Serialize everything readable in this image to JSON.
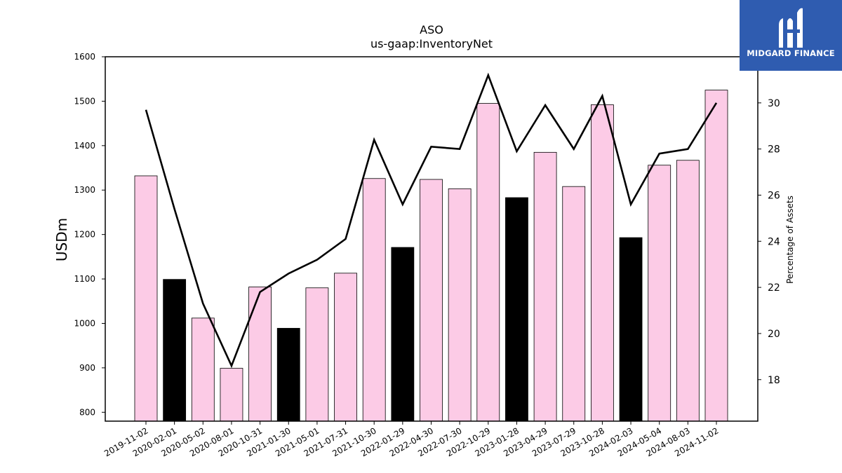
{
  "chart_data": {
    "type": "bar",
    "title": "ASO",
    "subtitle": "us-gaap:InventoryNet",
    "ylabel": "USDm",
    "y2label": "Percentage of Assets",
    "ylim": [
      780,
      1600
    ],
    "y2lim": [
      16.2,
      32.0
    ],
    "yticks": [
      800,
      900,
      1000,
      1100,
      1200,
      1300,
      1400,
      1500,
      1600
    ],
    "y2ticks": [
      18,
      20,
      22,
      24,
      26,
      28,
      30
    ],
    "categories": [
      "2019-11-02",
      "2020-02-01",
      "2020-05-02",
      "2020-08-01",
      "2020-10-31",
      "2021-01-30",
      "2021-05-01",
      "2021-07-31",
      "2021-10-30",
      "2022-01-29",
      "2022-04-30",
      "2022-07-30",
      "2022-10-29",
      "2023-01-28",
      "2023-04-29",
      "2023-07-29",
      "2023-10-28",
      "2024-02-03",
      "2024-05-04",
      "2024-08-03",
      "2024-11-02"
    ],
    "series": [
      {
        "kind": "bar",
        "values": [
          1332,
          1099,
          1012,
          899,
          1082,
          989,
          1080,
          1113,
          1326,
          1171,
          1324,
          1303,
          1495,
          1283,
          1385,
          1308,
          1492,
          1193,
          1356,
          1367,
          1525
        ],
        "colors": [
          "#fccbe6",
          "#000000",
          "#fccbe6",
          "#fccbe6",
          "#fccbe6",
          "#000000",
          "#fccbe6",
          "#fccbe6",
          "#fccbe6",
          "#000000",
          "#fccbe6",
          "#fccbe6",
          "#fccbe6",
          "#000000",
          "#fccbe6",
          "#fccbe6",
          "#fccbe6",
          "#000000",
          "#fccbe6",
          "#fccbe6",
          "#fccbe6"
        ]
      },
      {
        "kind": "line",
        "axis": "right",
        "color": "#000000",
        "values": [
          29.7,
          25.4,
          21.3,
          18.6,
          21.8,
          22.6,
          23.2,
          24.1,
          28.4,
          25.6,
          28.1,
          28.0,
          31.2,
          27.9,
          29.9,
          28.0,
          30.3,
          25.6,
          27.8,
          28.0,
          30.0
        ]
      }
    ]
  },
  "logo": {
    "text": "MIDGARD FINANCE",
    "bg": "#2f5cb0"
  }
}
